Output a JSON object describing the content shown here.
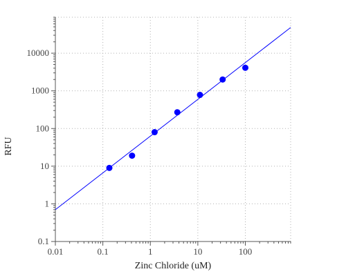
{
  "chart_data": {
    "type": "scatter",
    "title": "",
    "xlabel": "Zinc Chloride (uM)",
    "ylabel": "RFU",
    "xscale": "log",
    "yscale": "log",
    "xlim": [
      0.01,
      900
    ],
    "ylim": [
      0.1,
      90000
    ],
    "xticks": [
      0.01,
      0.1,
      1,
      10,
      100
    ],
    "xtick_labels": [
      "0.01",
      "0.1",
      "1",
      "10",
      "100"
    ],
    "yticks": [
      0.1,
      1,
      10,
      100,
      1000,
      10000
    ],
    "ytick_labels": [
      "0.1",
      "1",
      "10",
      "100",
      "1000",
      "10000"
    ],
    "grid": true,
    "legend": "none",
    "series": [
      {
        "kind": "points",
        "color": "#0000ff",
        "x": [
          0.137,
          0.412,
          1.23,
          3.7,
          11.1,
          33.3,
          100
        ],
        "y": [
          9,
          19,
          80,
          270,
          780,
          2000,
          4100
        ]
      },
      {
        "kind": "fit-line",
        "color": "#0000ff",
        "x": [
          0.01,
          900
        ],
        "y": [
          0.7,
          48000
        ]
      }
    ]
  }
}
